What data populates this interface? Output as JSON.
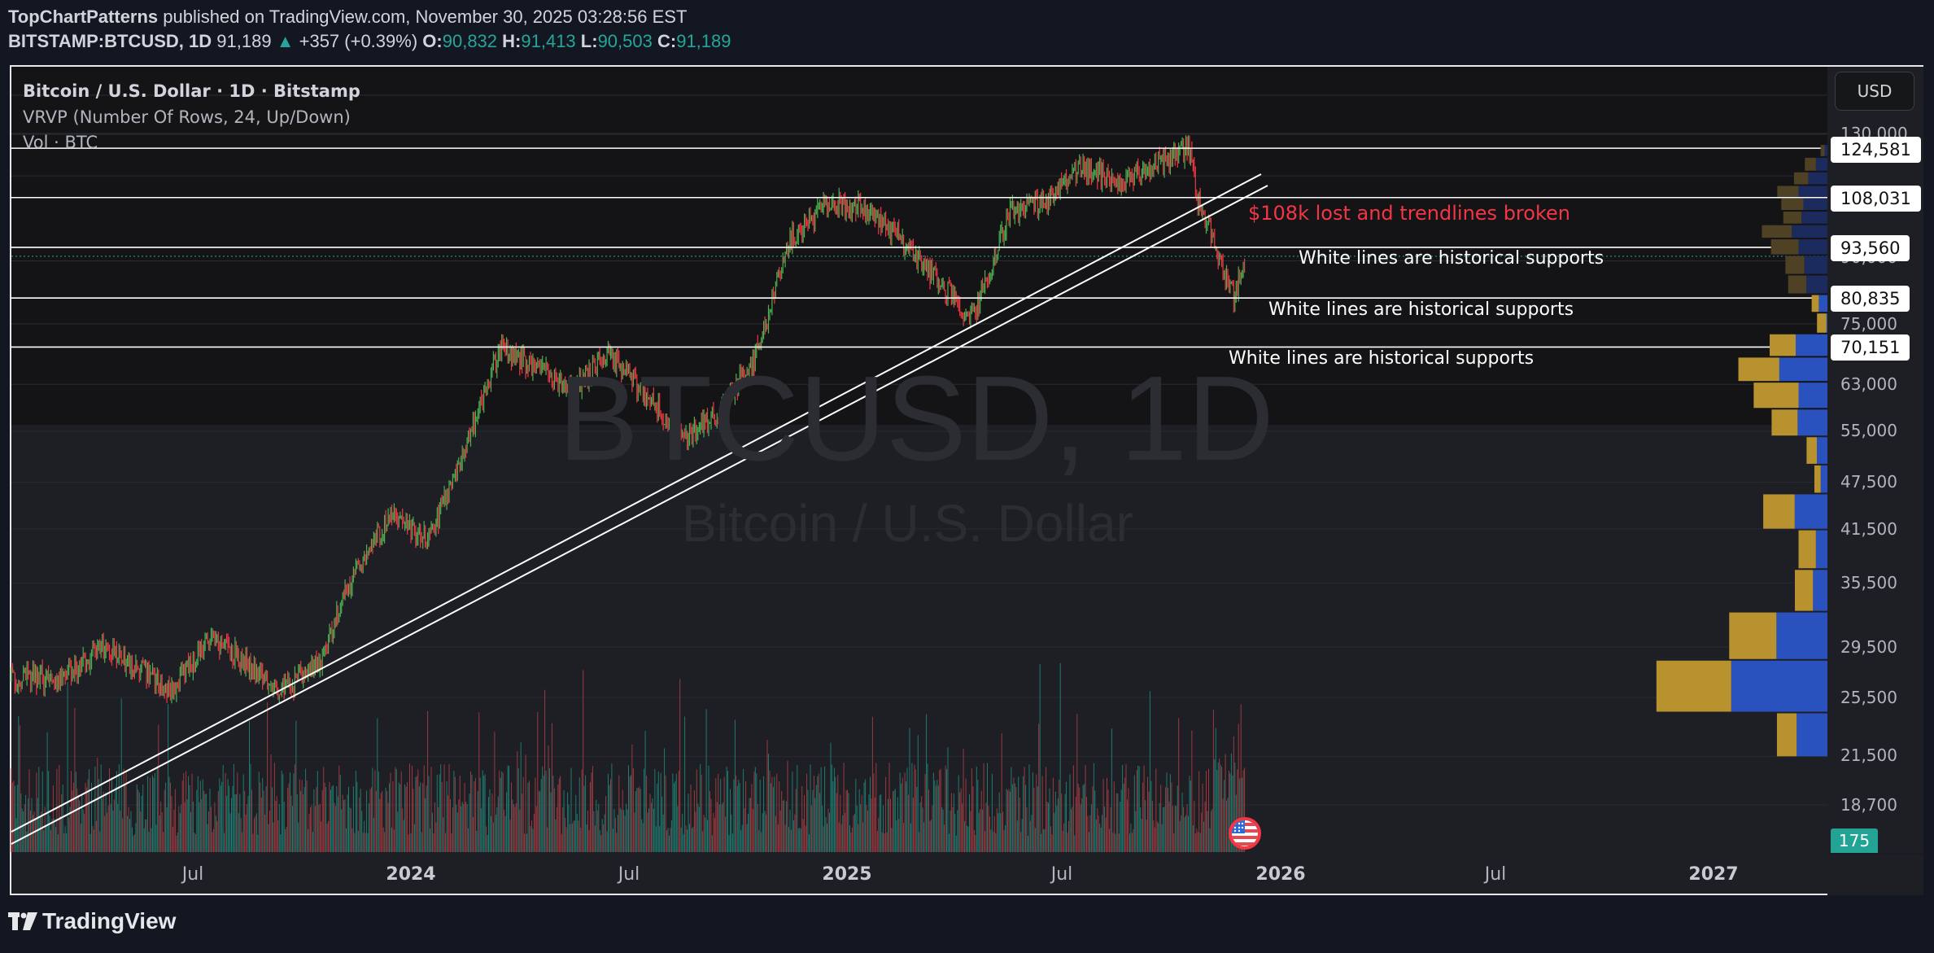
{
  "header": {
    "author": "TopChartPatterns",
    "published_text": " published on TradingView.com, November 30, 2025 03:28:56 EST",
    "symbol": "BITSTAMP:BTCUSD, 1D",
    "last_price": "91,189",
    "change_arrow": "▲",
    "change": "+357 (+0.39%)",
    "open_label": "O:",
    "open": "90,832",
    "high_label": "H:",
    "high": "91,413",
    "low_label": "L:",
    "low": "90,503",
    "close_label": "C:",
    "close": "91,189"
  },
  "legend": {
    "title": "Bitcoin / U.S. Dollar · 1D · Bitstamp",
    "vrvp": "VRVP (Number Of Rows, 24, Up/Down)",
    "volume": "Vol · BTC"
  },
  "currency_button": "USD",
  "watermark": {
    "symbol": "BTCUSD, 1D",
    "name": "Bitcoin / U.S. Dollar"
  },
  "annotations": {
    "red": "$108k lost and trendlines broken",
    "support_1": "White lines are historical supports",
    "support_2": "White lines are historical supports",
    "support_3": "White lines are historical supports"
  },
  "price_axis": {
    "labels": [
      "130,000",
      "90,000",
      "75,000",
      "63,000",
      "55,000",
      "47,500",
      "41,500",
      "35,500",
      "29,500",
      "25,500",
      "21,500",
      "18,700"
    ],
    "tags": [
      "124,581",
      "108,031",
      "93,560",
      "80,835",
      "70,151"
    ]
  },
  "volume_tag": "175",
  "time_axis": {
    "labels": [
      {
        "text": "Jul",
        "year": false
      },
      {
        "text": "2024",
        "year": true
      },
      {
        "text": "Jul",
        "year": false
      },
      {
        "text": "2025",
        "year": true
      },
      {
        "text": "Jul",
        "year": false
      },
      {
        "text": "2026",
        "year": true
      },
      {
        "text": "Jul",
        "year": false
      },
      {
        "text": "2027",
        "year": true
      }
    ]
  },
  "branding": "TradingView",
  "colors": {
    "up": "#26a69a",
    "candle_up": "#4caf50",
    "candle_down": "#f23645",
    "vrvp_up": "#2a52be",
    "vrvp_down": "#b8922e",
    "annotation_red": "#f23645",
    "support_line": "#ffffff"
  },
  "chart_data": {
    "type": "candlestick",
    "title": "Bitcoin / U.S. Dollar · 1D · Bitstamp",
    "symbol": "BITSTAMP:BTCUSD",
    "interval": "1D",
    "scale": "log",
    "ylim": [
      17500,
      135000
    ],
    "x_ticks": [
      "Jul",
      "2024",
      "Jul",
      "2025",
      "Jul",
      "2026",
      "Jul",
      "2027"
    ],
    "price_path_approx": [
      {
        "date": "2023-03",
        "price": 27000
      },
      {
        "date": "2023-04",
        "price": 29500
      },
      {
        "date": "2023-06",
        "price": 26000
      },
      {
        "date": "2023-07",
        "price": 30500
      },
      {
        "date": "2023-09",
        "price": 26000
      },
      {
        "date": "2023-10",
        "price": 28000
      },
      {
        "date": "2023-11",
        "price": 37000
      },
      {
        "date": "2023-12",
        "price": 43000
      },
      {
        "date": "2024-01",
        "price": 40000
      },
      {
        "date": "2024-02",
        "price": 52000
      },
      {
        "date": "2024-03",
        "price": 70000
      },
      {
        "date": "2024-05",
        "price": 62000
      },
      {
        "date": "2024-06",
        "price": 69000
      },
      {
        "date": "2024-08",
        "price": 54000
      },
      {
        "date": "2024-09",
        "price": 58000
      },
      {
        "date": "2024-10",
        "price": 68000
      },
      {
        "date": "2024-11",
        "price": 96000
      },
      {
        "date": "2024-12",
        "price": 106000
      },
      {
        "date": "2025-01",
        "price": 105000
      },
      {
        "date": "2025-02",
        "price": 96000
      },
      {
        "date": "2025-04",
        "price": 76000
      },
      {
        "date": "2025-05",
        "price": 104000
      },
      {
        "date": "2025-06",
        "price": 107000
      },
      {
        "date": "2025-07",
        "price": 118000
      },
      {
        "date": "2025-08",
        "price": 113000
      },
      {
        "date": "2025-10",
        "price": 124581
      },
      {
        "date": "2025-10-20",
        "price": 108000
      },
      {
        "date": "2025-11-21",
        "price": 80835
      },
      {
        "date": "2025-11-30",
        "price": 91189
      }
    ],
    "horizontal_supports": [
      124581,
      108031,
      93560,
      80835,
      70151
    ],
    "trendlines": "two parallel ascending trendlines from 2023 lows, broken in Nov 2025",
    "last": {
      "open": 90832,
      "high": 91413,
      "low": 90503,
      "close": 91189,
      "change": 357,
      "change_pct": 0.39
    },
    "volume_last": 175,
    "vrvp": {
      "rows": 24,
      "mode": "Up/Down",
      "profile": [
        {
          "price_mid": 124000,
          "up": 0.05,
          "down": 0.03
        },
        {
          "price_mid": 119000,
          "up": 0.14,
          "down": 0.12
        },
        {
          "price_mid": 114000,
          "up": 0.18,
          "down": 0.2
        },
        {
          "price_mid": 110000,
          "up": 0.27,
          "down": 0.3
        },
        {
          "price_mid": 106000,
          "up": 0.28,
          "down": 0.25
        },
        {
          "price_mid": 102000,
          "up": 0.23,
          "down": 0.27
        },
        {
          "price_mid": 98000,
          "up": 0.38,
          "down": 0.37
        },
        {
          "price_mid": 94000,
          "up": 0.35,
          "down": 0.3
        },
        {
          "price_mid": 89000,
          "up": 0.24,
          "down": 0.24
        },
        {
          "price_mid": 84000,
          "up": 0.23,
          "down": 0.22
        },
        {
          "price_mid": 79500,
          "up": 0.09,
          "down": 0.09
        },
        {
          "price_mid": 75500,
          "up": 0.12,
          "down": 0.01
        },
        {
          "price_mid": 70500,
          "up": 0.33,
          "down": 0.33
        },
        {
          "price_mid": 66000,
          "up": 0.52,
          "down": 0.5
        },
        {
          "price_mid": 61000,
          "up": 0.57,
          "down": 0.3
        },
        {
          "price_mid": 56500,
          "up": 0.33,
          "down": 0.31
        },
        {
          "price_mid": 52000,
          "up": 0.13,
          "down": 0.11
        },
        {
          "price_mid": 48000,
          "up": 0.08,
          "down": 0.07
        },
        {
          "price_mid": 44000,
          "up": 0.4,
          "down": 0.34
        },
        {
          "price_mid": 39000,
          "up": 0.22,
          "down": 0.12
        },
        {
          "price_mid": 35000,
          "up": 0.23,
          "down": 0.15
        },
        {
          "price_mid": 30500,
          "up": 0.6,
          "down": 0.53
        },
        {
          "price_mid": 26500,
          "up": 0.95,
          "down": 1.0
        },
        {
          "price_mid": 22500,
          "up": 0.25,
          "down": 0.32
        }
      ]
    }
  }
}
